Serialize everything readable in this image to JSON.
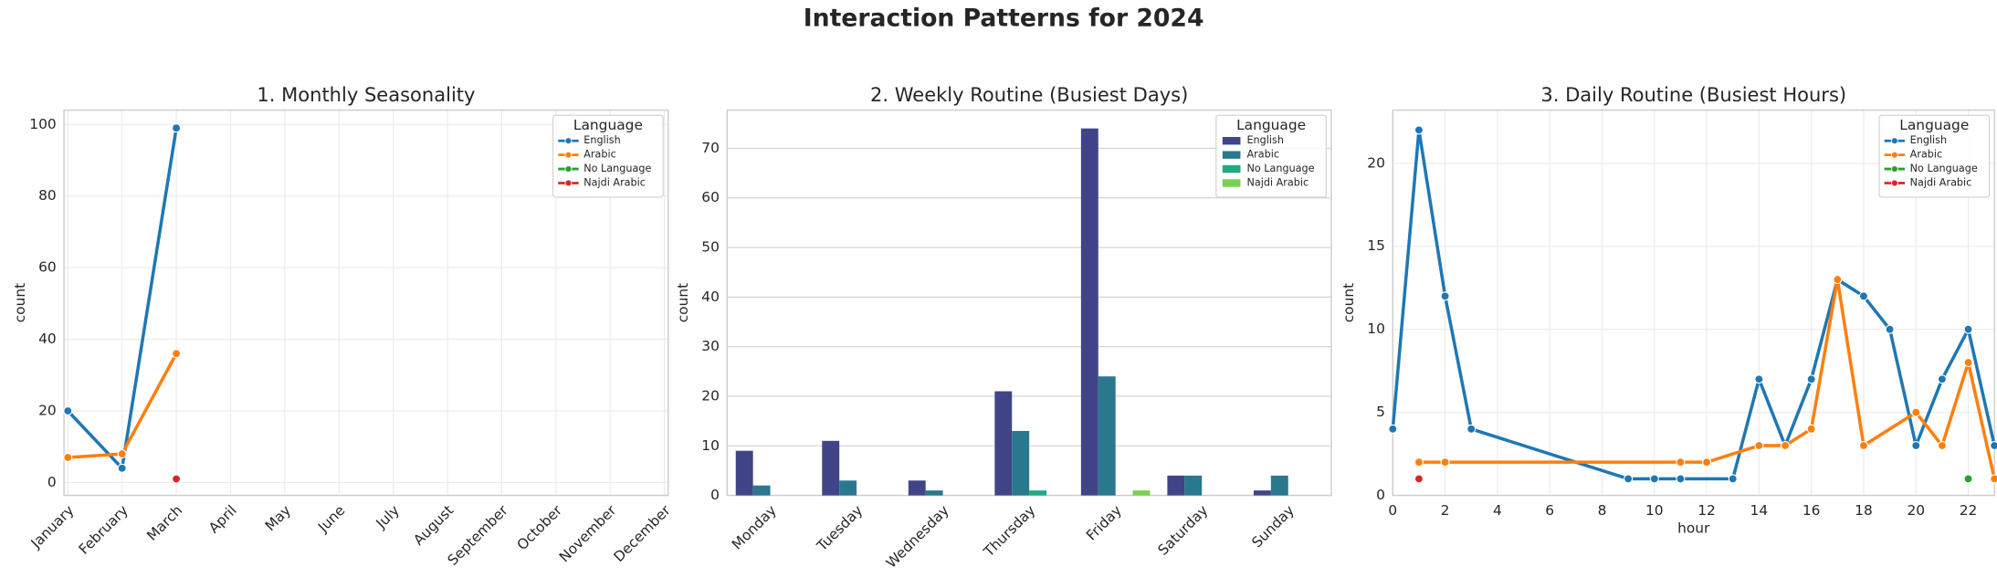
{
  "title": "Interaction Patterns for 2024",
  "chart_data": [
    {
      "type": "line",
      "title": "1. Monthly Seasonality",
      "ylabel": "count",
      "categories": [
        "January",
        "February",
        "March",
        "April",
        "May",
        "June",
        "July",
        "August",
        "September",
        "October",
        "November",
        "December"
      ],
      "series": [
        {
          "name": "English",
          "color": "#1f77b4",
          "values": [
            20,
            4,
            99,
            null,
            null,
            null,
            null,
            null,
            null,
            null,
            null,
            null
          ]
        },
        {
          "name": "Arabic",
          "color": "#ff7f0e",
          "values": [
            7,
            8,
            36,
            null,
            null,
            null,
            null,
            null,
            null,
            null,
            null,
            null
          ]
        },
        {
          "name": "No Language",
          "color": "#2ca02c",
          "values": [
            null,
            null,
            null,
            null,
            null,
            null,
            null,
            null,
            null,
            null,
            null,
            null
          ]
        },
        {
          "name": "Najdi Arabic",
          "color": "#d62728",
          "values": [
            null,
            null,
            1,
            null,
            null,
            null,
            null,
            null,
            null,
            null,
            null,
            null
          ]
        }
      ],
      "ylim": [
        -3.6,
        104
      ],
      "yticks": [
        0,
        20,
        40,
        60,
        80,
        100
      ],
      "grid": "both",
      "legend_title": "Language",
      "legend": "upper right"
    },
    {
      "type": "bar",
      "title": "2. Weekly Routine (Busiest Days)",
      "ylabel": "count",
      "categories": [
        "Monday",
        "Tuesday",
        "Wednesday",
        "Thursday",
        "Friday",
        "Saturday",
        "Sunday"
      ],
      "series": [
        {
          "name": "English",
          "color": "#414487",
          "values": [
            9,
            11,
            3,
            21,
            74,
            4,
            1
          ]
        },
        {
          "name": "Arabic",
          "color": "#2a788e",
          "values": [
            2,
            3,
            1,
            13,
            24,
            4,
            4
          ]
        },
        {
          "name": "No Language",
          "color": "#22a884",
          "values": [
            null,
            null,
            null,
            1,
            null,
            null,
            null
          ]
        },
        {
          "name": "Najdi Arabic",
          "color": "#7ad151",
          "values": [
            null,
            null,
            null,
            null,
            1,
            null,
            null
          ]
        }
      ],
      "ylim": [
        0,
        77.7
      ],
      "yticks": [
        0,
        10,
        20,
        30,
        40,
        50,
        60,
        70
      ],
      "grid": "y",
      "legend_title": "Language",
      "legend": "upper right"
    },
    {
      "type": "line",
      "title": "3. Daily Routine (Busiest Hours)",
      "ylabel": "count",
      "xlabel": "hour",
      "series": [
        {
          "name": "English",
          "color": "#1f77b4",
          "x": [
            0,
            1,
            2,
            3,
            9,
            10,
            11,
            13,
            14,
            15,
            16,
            17,
            18,
            19,
            20,
            21,
            22,
            23
          ],
          "values": [
            4,
            22,
            12,
            4,
            1,
            1,
            1,
            1,
            7,
            3,
            7,
            13,
            12,
            10,
            3,
            7,
            10,
            3
          ]
        },
        {
          "name": "Arabic",
          "color": "#ff7f0e",
          "x": [
            1,
            2,
            11,
            12,
            14,
            15,
            16,
            17,
            18,
            20,
            21,
            22,
            23
          ],
          "values": [
            2,
            2,
            2,
            2,
            3,
            3,
            4,
            13,
            3,
            5,
            3,
            8,
            1
          ]
        },
        {
          "name": "No Language",
          "color": "#2ca02c",
          "x": [
            22
          ],
          "values": [
            1
          ]
        },
        {
          "name": "Najdi Arabic",
          "color": "#d62728",
          "x": [
            1
          ],
          "values": [
            1
          ]
        }
      ],
      "xlim": [
        0,
        23
      ],
      "xticks": [
        0,
        2,
        4,
        6,
        8,
        10,
        12,
        14,
        16,
        18,
        20,
        22
      ],
      "ylim": [
        0,
        23.2
      ],
      "yticks": [
        0,
        5,
        10,
        15,
        20
      ],
      "grid": "both",
      "legend_title": "Language",
      "legend": "upper right"
    }
  ]
}
